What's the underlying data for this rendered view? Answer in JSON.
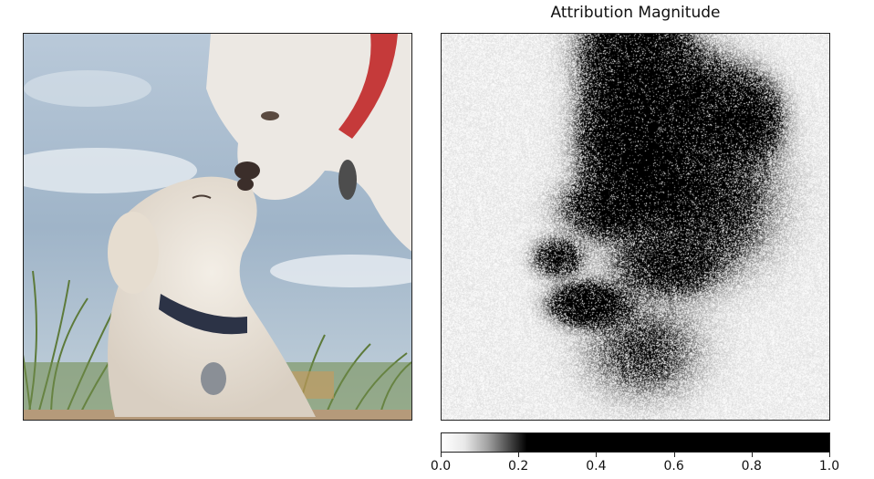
{
  "chart_data": [
    {
      "type": "image",
      "description_label": "",
      "content": "photo",
      "title": ""
    },
    {
      "type": "heatmap",
      "title": "Attribution Magnitude",
      "colormap": "gray_r",
      "colorbar": {
        "min": 0.0,
        "max": 1.0,
        "ticks": [
          "0.0",
          "0.2",
          "0.4",
          "0.6",
          "0.8",
          "1.0"
        ],
        "tick_values": [
          0.0,
          0.2,
          0.4,
          0.6,
          0.8,
          1.0
        ],
        "saturation_value": 0.25
      }
    }
  ]
}
